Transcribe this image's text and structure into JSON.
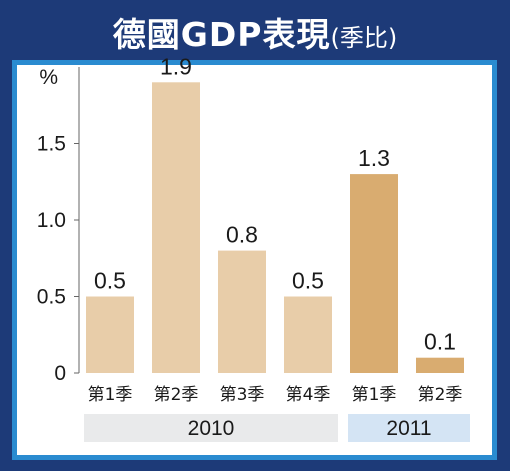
{
  "title": {
    "main": "德國GDP表現",
    "sub": "(季比)"
  },
  "chart_data": {
    "type": "bar",
    "unit_label": "%",
    "categories": [
      "第1季",
      "第2季",
      "第3季",
      "第4季",
      "第1季",
      "第2季"
    ],
    "values": [
      0.5,
      1.9,
      0.8,
      0.5,
      1.3,
      0.1
    ],
    "value_labels": [
      "0.5",
      "1.9",
      "0.8",
      "0.5",
      "1.3",
      "0.1"
    ],
    "groups": [
      {
        "label": "2010",
        "start": 0,
        "end": 3
      },
      {
        "label": "2011",
        "start": 4,
        "end": 5
      }
    ],
    "y_ticks": [
      "0",
      "0.5",
      "1.0",
      "1.5"
    ],
    "y_tick_values": [
      0,
      0.5,
      1.0,
      1.5
    ],
    "ylim": [
      0,
      2.0
    ],
    "grid": false,
    "colors": {
      "bar_2010": "#e8cda9",
      "bar_2011": "#d9ac70",
      "group_band_2010": "#e9eaeb",
      "group_band_2011": "#d4e4f4",
      "axis": "#666666",
      "panel_border": "#2a8bd0",
      "background": "#1d3a78"
    }
  }
}
